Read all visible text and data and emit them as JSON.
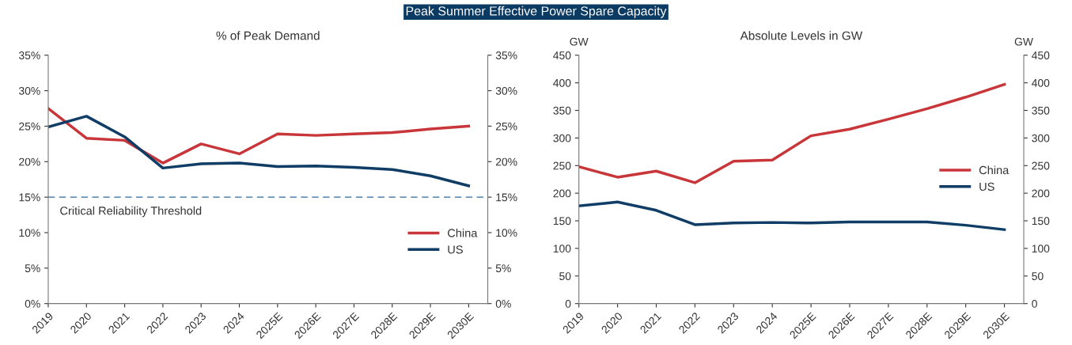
{
  "chart_data": [
    {
      "type": "line",
      "title": "Peak Summer Effective Power Spare Capacity",
      "subtitle": "% of Peak Demand",
      "categories": [
        "2019",
        "2020",
        "2021",
        "2022",
        "2023",
        "2024",
        "2025E",
        "2026E",
        "2027E",
        "2028E",
        "2029E",
        "2030E"
      ],
      "series": [
        {
          "name": "China",
          "color": "#c8363a",
          "values": [
            27.5,
            23.3,
            23.0,
            19.8,
            22.5,
            21.1,
            23.9,
            23.7,
            23.9,
            24.1,
            24.6,
            25.0
          ]
        },
        {
          "name": "US",
          "color": "#0f3d66",
          "values": [
            24.9,
            26.4,
            23.5,
            19.1,
            19.7,
            19.8,
            19.3,
            19.4,
            19.2,
            18.9,
            18.0,
            16.6
          ]
        }
      ],
      "ylim": [
        0,
        35
      ],
      "yticks": [
        {
          "value": 0,
          "label": "0%"
        },
        {
          "value": 5,
          "label": "5%"
        },
        {
          "value": 10,
          "label": "10%"
        },
        {
          "value": 15,
          "label": "15%"
        },
        {
          "value": 20,
          "label": "20%"
        },
        {
          "value": 25,
          "label": "25%"
        },
        {
          "value": 30,
          "label": "30%"
        },
        {
          "value": 35,
          "label": "35%"
        }
      ],
      "y2lim": [
        0,
        35
      ],
      "y2ticks": [
        {
          "value": 0,
          "label": "0%"
        },
        {
          "value": 5,
          "label": "5%"
        },
        {
          "value": 10,
          "label": "10%"
        },
        {
          "value": 15,
          "label": "15%"
        },
        {
          "value": 20,
          "label": "20%"
        },
        {
          "value": 25,
          "label": "25%"
        },
        {
          "value": 30,
          "label": "30%"
        },
        {
          "value": 35,
          "label": "35%"
        }
      ],
      "ref_lines": [
        {
          "axis": "y",
          "value": 15,
          "label": "Critical Reliability Threshold",
          "color": "#2e6a9e",
          "line_style": "dashed"
        }
      ],
      "legend": "bottom right",
      "grid": false,
      "marker": "none",
      "line_style": "solid"
    },
    {
      "type": "line",
      "title": "Absolute Levels in GW",
      "ylabel": "GW",
      "y2label": "GW",
      "categories": [
        "2019",
        "2020",
        "2021",
        "2022",
        "2023",
        "2024",
        "2025E",
        "2026E",
        "2027E",
        "2028E",
        "2029E",
        "2030E"
      ],
      "series": [
        {
          "name": "China",
          "color": "#c8363a",
          "values": [
            248,
            229,
            240,
            219,
            258,
            260,
            304,
            316,
            334,
            353,
            374,
            397
          ]
        },
        {
          "name": "US",
          "color": "#0f3d66",
          "values": [
            177,
            184,
            169,
            143,
            146,
            147,
            146,
            148,
            148,
            148,
            142,
            134
          ]
        }
      ],
      "ylim": [
        0,
        450
      ],
      "yticks": [
        0,
        50,
        100,
        150,
        200,
        250,
        300,
        350,
        400,
        450
      ],
      "y2lim": [
        0,
        450
      ],
      "y2ticks": [
        0,
        50,
        100,
        150,
        200,
        250,
        300,
        350,
        400,
        450
      ],
      "legend": "right",
      "grid": false,
      "marker": "none",
      "line_style": "solid"
    }
  ]
}
